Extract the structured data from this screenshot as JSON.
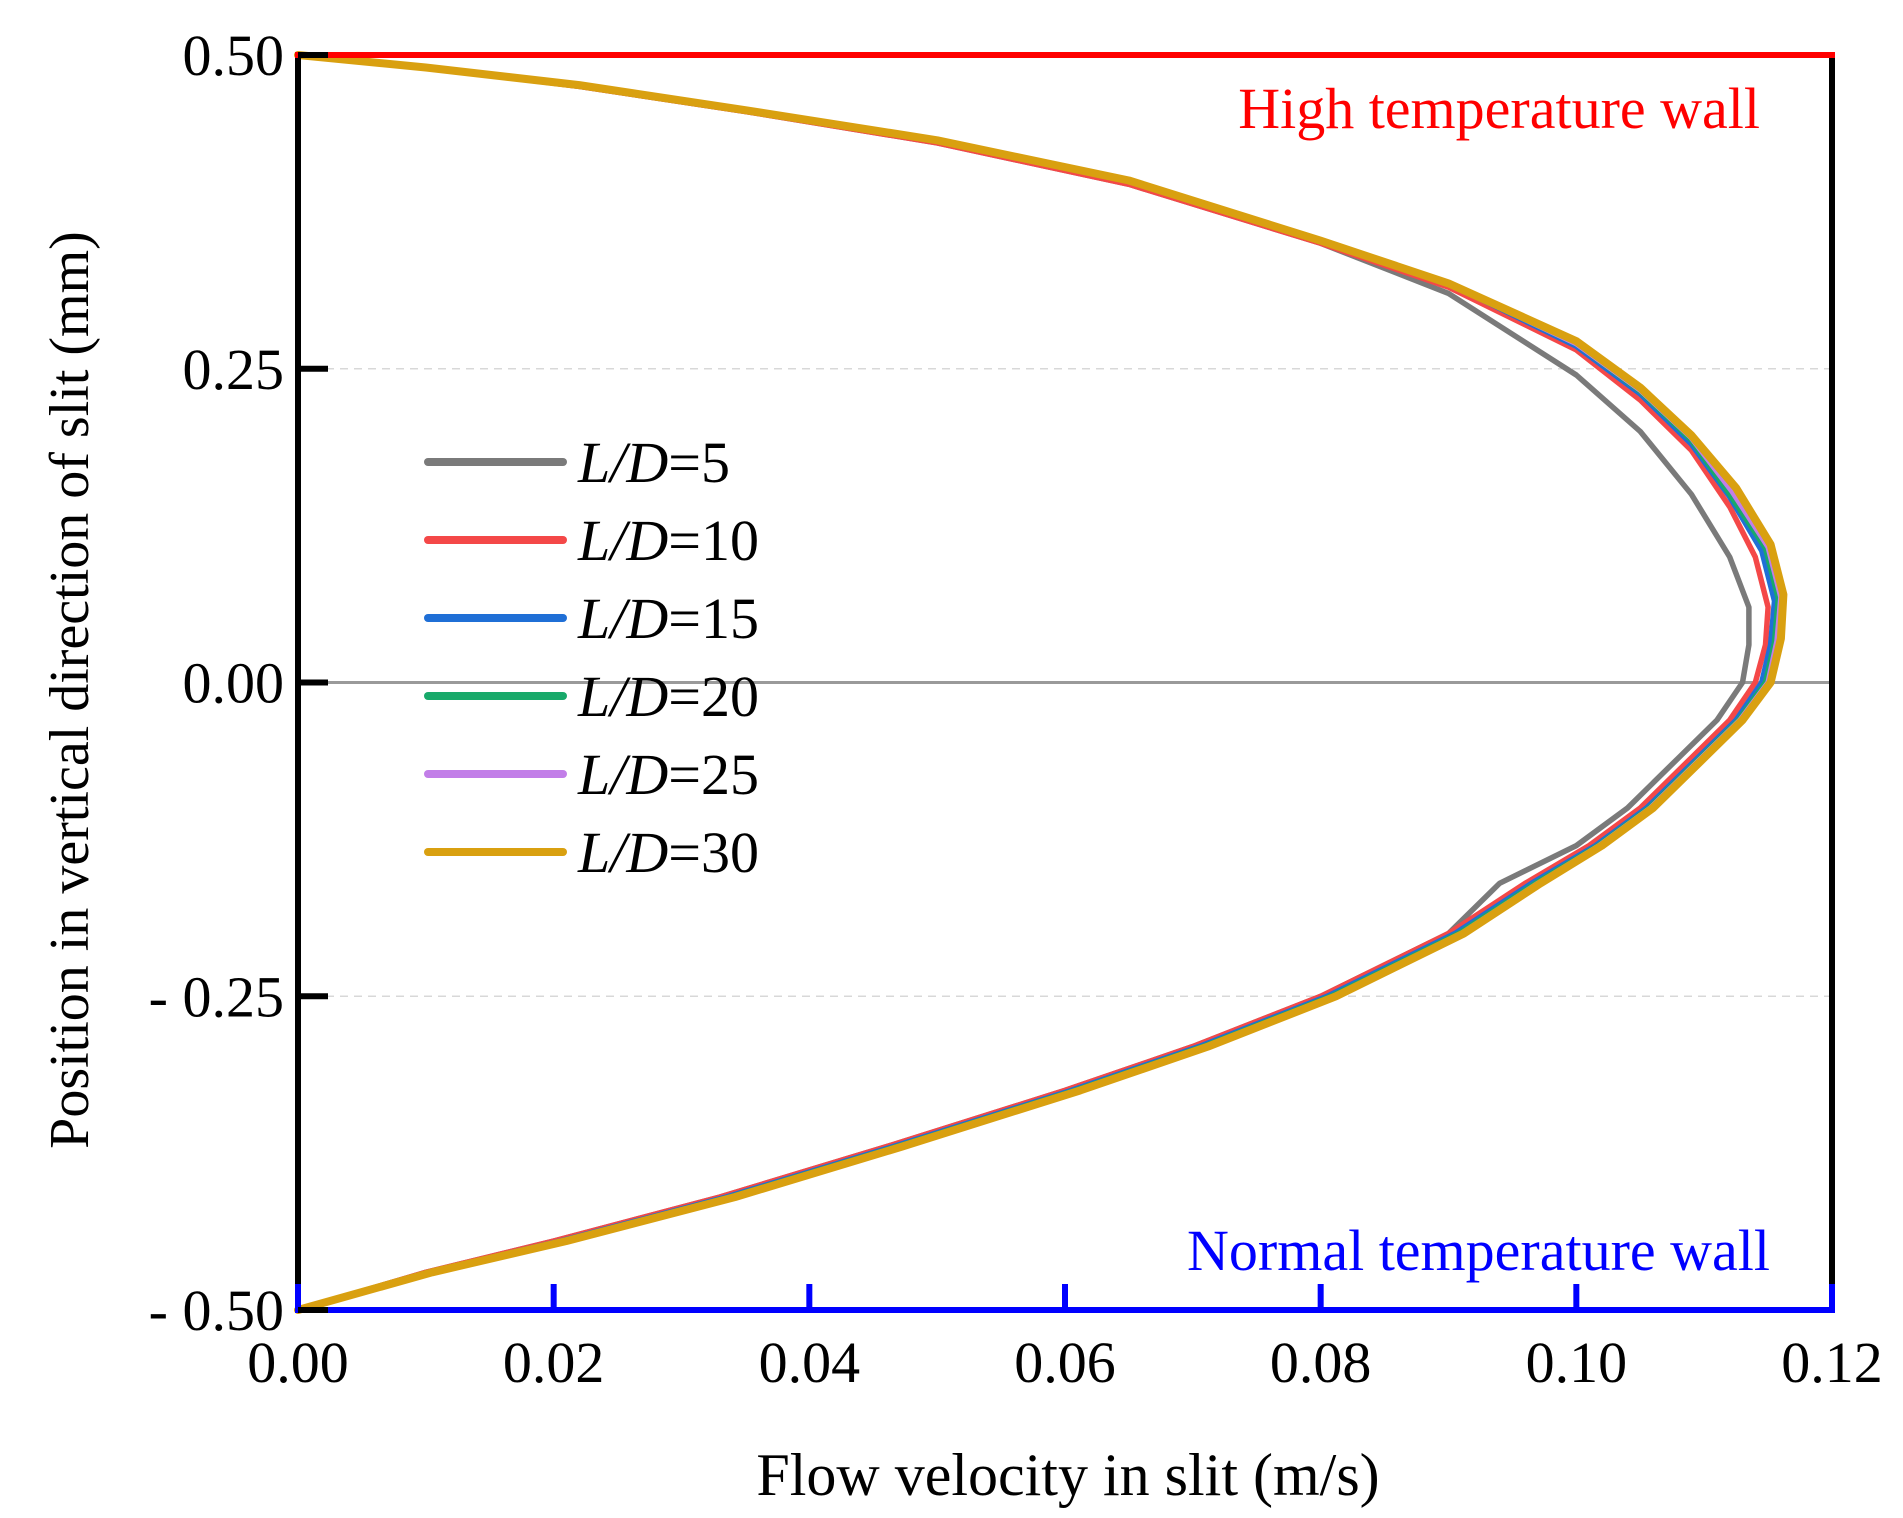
{
  "chart_data": {
    "type": "line",
    "title": "",
    "xlabel": "Flow velocity in slit (m/s)",
    "ylabel": "Position in vertical direction of slit (mm)",
    "xlim": [
      0,
      0.12
    ],
    "ylim": [
      -0.5,
      0.5
    ],
    "x_ticks": [
      0.0,
      0.02,
      0.04,
      0.06,
      0.08,
      0.1,
      0.12
    ],
    "x_tick_labels": [
      "0.00",
      "0.02",
      "0.04",
      "0.06",
      "0.08",
      "0.10",
      "0.12"
    ],
    "y_ticks": [
      0.5,
      0.25,
      0.0,
      -0.25,
      -0.5
    ],
    "y_tick_labels": [
      "0.50",
      "0.25",
      "0.00",
      "- 0.25",
      "- 0.50"
    ],
    "annotations": {
      "top_wall": "High temperature wall",
      "bottom_wall": "Normal temperature wall"
    },
    "wall_colors": {
      "top": "#ff0000",
      "bottom": "#0000ff"
    },
    "legend_position": "left-center",
    "series": [
      {
        "name": "L/D=5",
        "name_italic": "L/D",
        "name_rest": "=5",
        "color": "#7a7a7a",
        "points": [
          [
            0,
            0.5
          ],
          [
            0.01,
            0.49
          ],
          [
            0.022,
            0.475
          ],
          [
            0.035,
            0.455
          ],
          [
            0.05,
            0.43
          ],
          [
            0.065,
            0.397
          ],
          [
            0.08,
            0.35
          ],
          [
            0.09,
            0.31
          ],
          [
            0.1,
            0.245
          ],
          [
            0.105,
            0.2
          ],
          [
            0.109,
            0.15
          ],
          [
            0.112,
            0.1
          ],
          [
            0.1135,
            0.06
          ],
          [
            0.1135,
            0.03
          ],
          [
            0.113,
            0.0
          ],
          [
            0.111,
            -0.03
          ],
          [
            0.108,
            -0.06
          ],
          [
            0.104,
            -0.1
          ],
          [
            0.1,
            -0.13
          ],
          [
            0.094,
            -0.16
          ],
          [
            0.09,
            -0.2
          ],
          [
            0.08,
            -0.25
          ],
          [
            0.07,
            -0.29
          ],
          [
            0.06,
            -0.325
          ],
          [
            0.046,
            -0.37
          ],
          [
            0.033,
            -0.41
          ],
          [
            0.02,
            -0.445
          ],
          [
            0.01,
            -0.47
          ],
          [
            0,
            -0.5
          ]
        ]
      },
      {
        "name": "L/D=10",
        "name_italic": "L/D",
        "name_rest": "=10",
        "color": "#f44848",
        "points": [
          [
            0,
            0.5
          ],
          [
            0.01,
            0.49
          ],
          [
            0.022,
            0.475
          ],
          [
            0.035,
            0.455
          ],
          [
            0.05,
            0.43
          ],
          [
            0.065,
            0.397
          ],
          [
            0.08,
            0.35
          ],
          [
            0.09,
            0.315
          ],
          [
            0.1,
            0.265
          ],
          [
            0.105,
            0.225
          ],
          [
            0.109,
            0.185
          ],
          [
            0.112,
            0.14
          ],
          [
            0.114,
            0.1
          ],
          [
            0.115,
            0.06
          ],
          [
            0.1148,
            0.03
          ],
          [
            0.114,
            0.0
          ],
          [
            0.112,
            -0.03
          ],
          [
            0.109,
            -0.06
          ],
          [
            0.105,
            -0.1
          ],
          [
            0.101,
            -0.13
          ],
          [
            0.096,
            -0.16
          ],
          [
            0.09,
            -0.2
          ],
          [
            0.08,
            -0.25
          ],
          [
            0.07,
            -0.29
          ],
          [
            0.06,
            -0.325
          ],
          [
            0.046,
            -0.37
          ],
          [
            0.033,
            -0.41
          ],
          [
            0.02,
            -0.445
          ],
          [
            0.01,
            -0.47
          ],
          [
            0,
            -0.5
          ]
        ]
      },
      {
        "name": "L/D=15",
        "name_italic": "L/D",
        "name_rest": "=15",
        "color": "#1f6fd6",
        "points": [
          [
            0,
            0.5
          ],
          [
            0.01,
            0.49
          ],
          [
            0.022,
            0.476
          ],
          [
            0.035,
            0.456
          ],
          [
            0.05,
            0.432
          ],
          [
            0.065,
            0.4
          ],
          [
            0.08,
            0.352
          ],
          [
            0.09,
            0.318
          ],
          [
            0.1,
            0.268
          ],
          [
            0.105,
            0.23
          ],
          [
            0.109,
            0.19
          ],
          [
            0.112,
            0.148
          ],
          [
            0.1145,
            0.105
          ],
          [
            0.1155,
            0.065
          ],
          [
            0.1152,
            0.03
          ],
          [
            0.1145,
            0.0
          ],
          [
            0.1125,
            -0.03
          ],
          [
            0.1095,
            -0.06
          ],
          [
            0.1055,
            -0.1
          ],
          [
            0.1015,
            -0.13
          ],
          [
            0.0965,
            -0.16
          ],
          [
            0.0905,
            -0.2
          ],
          [
            0.0805,
            -0.25
          ],
          [
            0.0705,
            -0.29
          ],
          [
            0.0605,
            -0.325
          ],
          [
            0.0465,
            -0.37
          ],
          [
            0.0335,
            -0.41
          ],
          [
            0.0205,
            -0.445
          ],
          [
            0.0102,
            -0.47
          ],
          [
            0,
            -0.5
          ]
        ]
      },
      {
        "name": "L/D=20",
        "name_italic": "L/D",
        "name_rest": "=20",
        "color": "#18a96a",
        "points": [
          [
            0,
            0.5
          ],
          [
            0.01,
            0.49
          ],
          [
            0.022,
            0.476
          ],
          [
            0.035,
            0.456
          ],
          [
            0.05,
            0.432
          ],
          [
            0.065,
            0.4
          ],
          [
            0.08,
            0.352
          ],
          [
            0.09,
            0.318
          ],
          [
            0.1,
            0.27
          ],
          [
            0.105,
            0.232
          ],
          [
            0.109,
            0.193
          ],
          [
            0.112,
            0.15
          ],
          [
            0.1148,
            0.107
          ],
          [
            0.1158,
            0.067
          ],
          [
            0.1155,
            0.032
          ],
          [
            0.1148,
            0.0
          ],
          [
            0.1127,
            -0.03
          ],
          [
            0.1097,
            -0.06
          ],
          [
            0.1057,
            -0.1
          ],
          [
            0.1017,
            -0.13
          ],
          [
            0.0968,
            -0.16
          ],
          [
            0.0908,
            -0.2
          ],
          [
            0.0808,
            -0.25
          ],
          [
            0.0708,
            -0.29
          ],
          [
            0.0608,
            -0.325
          ],
          [
            0.0468,
            -0.37
          ],
          [
            0.0338,
            -0.41
          ],
          [
            0.0207,
            -0.445
          ],
          [
            0.0103,
            -0.47
          ],
          [
            0,
            -0.5
          ]
        ]
      },
      {
        "name": "L/D=25",
        "name_italic": "L/D",
        "name_rest": "=25",
        "color": "#c27ee8",
        "points": [
          [
            0,
            0.5
          ],
          [
            0.01,
            0.49
          ],
          [
            0.022,
            0.476
          ],
          [
            0.035,
            0.456
          ],
          [
            0.05,
            0.432
          ],
          [
            0.065,
            0.4
          ],
          [
            0.08,
            0.352
          ],
          [
            0.09,
            0.318
          ],
          [
            0.1,
            0.27
          ],
          [
            0.105,
            0.233
          ],
          [
            0.109,
            0.195
          ],
          [
            0.1122,
            0.152
          ],
          [
            0.115,
            0.108
          ],
          [
            0.116,
            0.068
          ],
          [
            0.1157,
            0.033
          ],
          [
            0.115,
            0.0
          ],
          [
            0.1128,
            -0.03
          ],
          [
            0.1098,
            -0.06
          ],
          [
            0.1058,
            -0.1
          ],
          [
            0.1018,
            -0.13
          ],
          [
            0.097,
            -0.16
          ],
          [
            0.091,
            -0.2
          ],
          [
            0.081,
            -0.25
          ],
          [
            0.071,
            -0.29
          ],
          [
            0.061,
            -0.325
          ],
          [
            0.047,
            -0.37
          ],
          [
            0.034,
            -0.41
          ],
          [
            0.0208,
            -0.445
          ],
          [
            0.0104,
            -0.47
          ],
          [
            0,
            -0.5
          ]
        ]
      },
      {
        "name": "L/D=30",
        "name_italic": "L/D",
        "name_rest": "=30",
        "color": "#d9a010",
        "points": [
          [
            0,
            0.5
          ],
          [
            0.01,
            0.49
          ],
          [
            0.022,
            0.476
          ],
          [
            0.035,
            0.456
          ],
          [
            0.05,
            0.432
          ],
          [
            0.065,
            0.4
          ],
          [
            0.08,
            0.352
          ],
          [
            0.09,
            0.318
          ],
          [
            0.1,
            0.272
          ],
          [
            0.105,
            0.235
          ],
          [
            0.109,
            0.197
          ],
          [
            0.1125,
            0.155
          ],
          [
            0.1152,
            0.11
          ],
          [
            0.1162,
            0.07
          ],
          [
            0.116,
            0.035
          ],
          [
            0.1152,
            0.0
          ],
          [
            0.113,
            -0.03
          ],
          [
            0.11,
            -0.06
          ],
          [
            0.106,
            -0.1
          ],
          [
            0.102,
            -0.13
          ],
          [
            0.0972,
            -0.16
          ],
          [
            0.0912,
            -0.2
          ],
          [
            0.0812,
            -0.25
          ],
          [
            0.0712,
            -0.29
          ],
          [
            0.0612,
            -0.325
          ],
          [
            0.0472,
            -0.37
          ],
          [
            0.0342,
            -0.41
          ],
          [
            0.021,
            -0.445
          ],
          [
            0.0105,
            -0.47
          ],
          [
            0,
            -0.5
          ]
        ]
      }
    ]
  }
}
